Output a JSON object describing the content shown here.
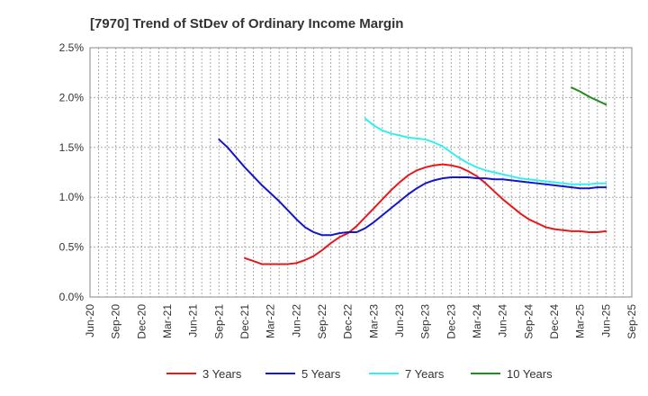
{
  "chart_data": {
    "type": "line",
    "title": "[7970]  Trend of StDev of Ordinary Income Margin",
    "xlabel": "",
    "ylabel": "",
    "x_ticks": [
      "Jun-20",
      "Sep-20",
      "Dec-20",
      "Mar-21",
      "Jun-21",
      "Sep-21",
      "Dec-21",
      "Mar-22",
      "Jun-22",
      "Sep-22",
      "Dec-22",
      "Mar-23",
      "Jun-23",
      "Sep-23",
      "Dec-23",
      "Mar-24",
      "Jun-24",
      "Sep-24",
      "Dec-24",
      "Mar-25",
      "Jun-25",
      "Sep-25"
    ],
    "y_ticks": [
      "0.0%",
      "0.5%",
      "1.0%",
      "1.5%",
      "2.0%",
      "2.5%"
    ],
    "ylim": [
      0,
      2.5
    ],
    "grid": true,
    "legend_position": "bottom",
    "series": [
      {
        "name": "3 Years",
        "color": "#e31a1c",
        "values": [
          0.39,
          0.36,
          0.33,
          0.33,
          0.33,
          0.33,
          0.34,
          0.37,
          0.41,
          0.47,
          0.54,
          0.6,
          0.64,
          0.71,
          0.8,
          0.89,
          0.98,
          1.07,
          1.15,
          1.22,
          1.27,
          1.3,
          1.32,
          1.33,
          1.32,
          1.3,
          1.26,
          1.21,
          1.14,
          1.06,
          0.98,
          0.91,
          0.84,
          0.78,
          0.74,
          0.7,
          0.68,
          0.67,
          0.66,
          0.66,
          0.65,
          0.65,
          0.66
        ]
      },
      {
        "name": "5 Years",
        "color": "#1515c8",
        "values": [
          1.58,
          1.5,
          1.4,
          1.3,
          1.21,
          1.12,
          1.04,
          0.96,
          0.87,
          0.78,
          0.7,
          0.65,
          0.62,
          0.62,
          0.64,
          0.65,
          0.65,
          0.69,
          0.75,
          0.82,
          0.89,
          0.96,
          1.03,
          1.09,
          1.14,
          1.17,
          1.19,
          1.2,
          1.2,
          1.2,
          1.19,
          1.19,
          1.18,
          1.18,
          1.17,
          1.16,
          1.15,
          1.14,
          1.13,
          1.12,
          1.11,
          1.1,
          1.09,
          1.09,
          1.1,
          1.1
        ]
      },
      {
        "name": "7 Years",
        "color": "#33f0f0",
        "values": [
          1.79,
          1.72,
          1.67,
          1.64,
          1.62,
          1.6,
          1.59,
          1.58,
          1.55,
          1.51,
          1.45,
          1.39,
          1.34,
          1.3,
          1.27,
          1.25,
          1.23,
          1.21,
          1.19,
          1.18,
          1.17,
          1.16,
          1.15,
          1.14,
          1.13,
          1.13,
          1.13,
          1.14,
          1.14
        ]
      },
      {
        "name": "10 Years",
        "color": "#228b22",
        "values": [
          2.1,
          2.06,
          2.01,
          1.97,
          1.93
        ]
      }
    ]
  }
}
